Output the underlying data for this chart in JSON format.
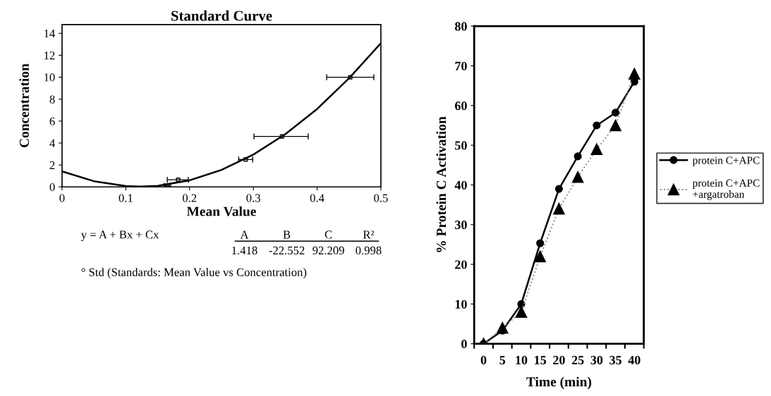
{
  "chart_data": [
    {
      "type": "line",
      "title": "Standard Curve",
      "xlabel": "Mean Value",
      "ylabel": "Concentration",
      "xlim": [
        0,
        0.5
      ],
      "xticks": [
        0,
        0.1,
        0.2,
        0.3,
        0.4,
        0.5
      ],
      "ylim": [
        0,
        14.8
      ],
      "yticks": [
        0,
        2,
        4,
        6,
        8,
        10,
        12,
        14
      ],
      "grid": false,
      "legend": false,
      "series": [
        {
          "type": "line",
          "color": "#000000",
          "marker": "none",
          "x": [
            0,
            0.05,
            0.1,
            0.122,
            0.15,
            0.2,
            0.25,
            0.3,
            0.35,
            0.4,
            0.45,
            0.5
          ],
          "values": [
            1.42,
            0.52,
            0.08,
            0.04,
            0.1,
            0.6,
            1.55,
            2.95,
            4.8,
            7.1,
            9.9,
            13.1
          ]
        },
        {
          "type": "scatter",
          "color": "#000000",
          "marker": "square",
          "x": [
            0.165,
            0.182,
            0.288,
            0.345,
            0.452
          ],
          "values": [
            0.1,
            0.65,
            2.5,
            4.6,
            10
          ],
          "xerrors": [
            [
              0.16,
              0.17
            ],
            [
              0.165,
              0.198
            ],
            [
              0.277,
              0.299
            ],
            [
              0.301,
              0.386
            ],
            [
              0.415,
              0.489
            ]
          ]
        }
      ],
      "annotations": [
        "y = A + Bx + Cx",
        "A",
        "B",
        "C",
        "R²",
        "1.418",
        "-22.552",
        "92.209",
        "0.998",
        "° Std (Standards: Mean Value vs Concentration)"
      ]
    },
    {
      "type": "line",
      "xlabel": "Time (min)",
      "ylabel": "% Protein C Activation",
      "categories": [
        "0",
        "5",
        "10",
        "15",
        "20",
        "25",
        "30",
        "35",
        "40"
      ],
      "ylim": [
        0,
        80
      ],
      "yticks": [
        0,
        10,
        20,
        30,
        40,
        50,
        60,
        70,
        80
      ],
      "grid": false,
      "legend": "right",
      "series": [
        {
          "name": "protein C+APC",
          "color": "#000000",
          "marker": "circle",
          "line_style": "solid",
          "values": [
            0,
            3.3,
            10,
            25.3,
            39,
            47.2,
            55,
            58.2,
            66
          ]
        },
        {
          "name": "protein C+APC\n+argatroban",
          "color": "#000000",
          "marker": "triangle",
          "line_style": "dotted",
          "values": [
            0,
            4,
            8,
            22,
            34,
            42,
            49,
            55,
            68
          ]
        }
      ]
    }
  ]
}
